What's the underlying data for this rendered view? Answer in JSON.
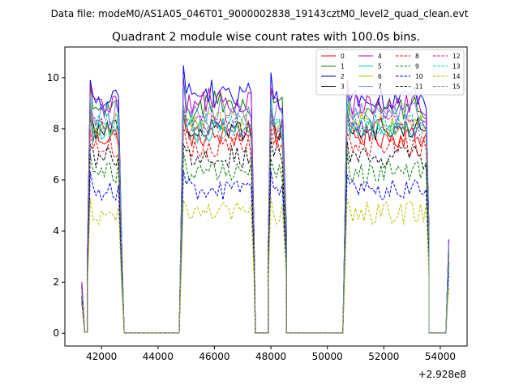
{
  "suptitle": "Data file: modeM0/AS1A05_046T01_9000002838_19143cztM0_level2_quad_clean.evt",
  "chart_data": {
    "type": "line",
    "title": "Quadrant 2 module wise count rates with 100.0s bins.",
    "xlabel": "",
    "ylabel": "",
    "x_offset_label": "+2.928e8",
    "xlim": [
      40700,
      54950
    ],
    "ylim": [
      -0.5,
      11.2
    ],
    "xticks": [
      42000,
      44000,
      46000,
      48000,
      50000,
      52000,
      54000
    ],
    "xtick_labels": [
      "42000",
      "44000",
      "46000",
      "48000",
      "50000",
      "52000",
      "54000"
    ],
    "yticks": [
      0,
      2,
      4,
      6,
      8,
      10
    ],
    "ytick_labels": [
      "0",
      "2",
      "4",
      "6",
      "8",
      "10"
    ],
    "legend_position": "top-right",
    "legend_columns": 4,
    "segments": [
      {
        "on_start": 41600,
        "on_end": 42600,
        "off_end": 42800
      },
      {
        "on_start": 44900,
        "on_end": 47300,
        "off_end": 47450
      },
      {
        "on_start": 48000,
        "on_end": 48450,
        "off_end": 48550
      },
      {
        "on_start": 50700,
        "on_end": 53500,
        "off_end": 53600
      }
    ],
    "gaps": [
      {
        "start": 42800,
        "end": 44750
      },
      {
        "start": 47450,
        "end": 47900
      },
      {
        "start": 48550,
        "end": 50550
      },
      {
        "start": 53600,
        "end": 54200
      }
    ],
    "series": [
      {
        "name": "0",
        "color": "#ff0000",
        "dash": "solid",
        "level": 7.7
      },
      {
        "name": "1",
        "color": "#008000",
        "dash": "solid",
        "level": 8.8
      },
      {
        "name": "2",
        "color": "#0000ff",
        "dash": "solid",
        "level": 9.2
      },
      {
        "name": "3",
        "color": "#000000",
        "dash": "solid",
        "level": 8.0
      },
      {
        "name": "4",
        "color": "#bf00bf",
        "dash": "solid",
        "level": 8.9
      },
      {
        "name": "5",
        "color": "#00bfbf",
        "dash": "solid",
        "level": 7.9
      },
      {
        "name": "6",
        "color": "#bfbf00",
        "dash": "solid",
        "level": 8.2
      },
      {
        "name": "7",
        "color": "#7f7fff",
        "dash": "solid",
        "level": 8.6
      },
      {
        "name": "8",
        "color": "#ff0000",
        "dash": "dashed",
        "level": 7.3
      },
      {
        "name": "9",
        "color": "#008000",
        "dash": "dashed",
        "level": 6.3
      },
      {
        "name": "10",
        "color": "#0000ff",
        "dash": "dashed",
        "level": 5.6
      },
      {
        "name": "11",
        "color": "#000000",
        "dash": "dashed",
        "level": 6.9
      },
      {
        "name": "12",
        "color": "#bf00bf",
        "dash": "dashed",
        "level": 8.1
      },
      {
        "name": "13",
        "color": "#00bfbf",
        "dash": "dashed",
        "level": 8.2
      },
      {
        "name": "14",
        "color": "#bfbf00",
        "dash": "dashed",
        "level": 4.7
      },
      {
        "name": "15",
        "color": "#7f7f7f",
        "dash": "dashed",
        "level": 7.9
      }
    ]
  }
}
